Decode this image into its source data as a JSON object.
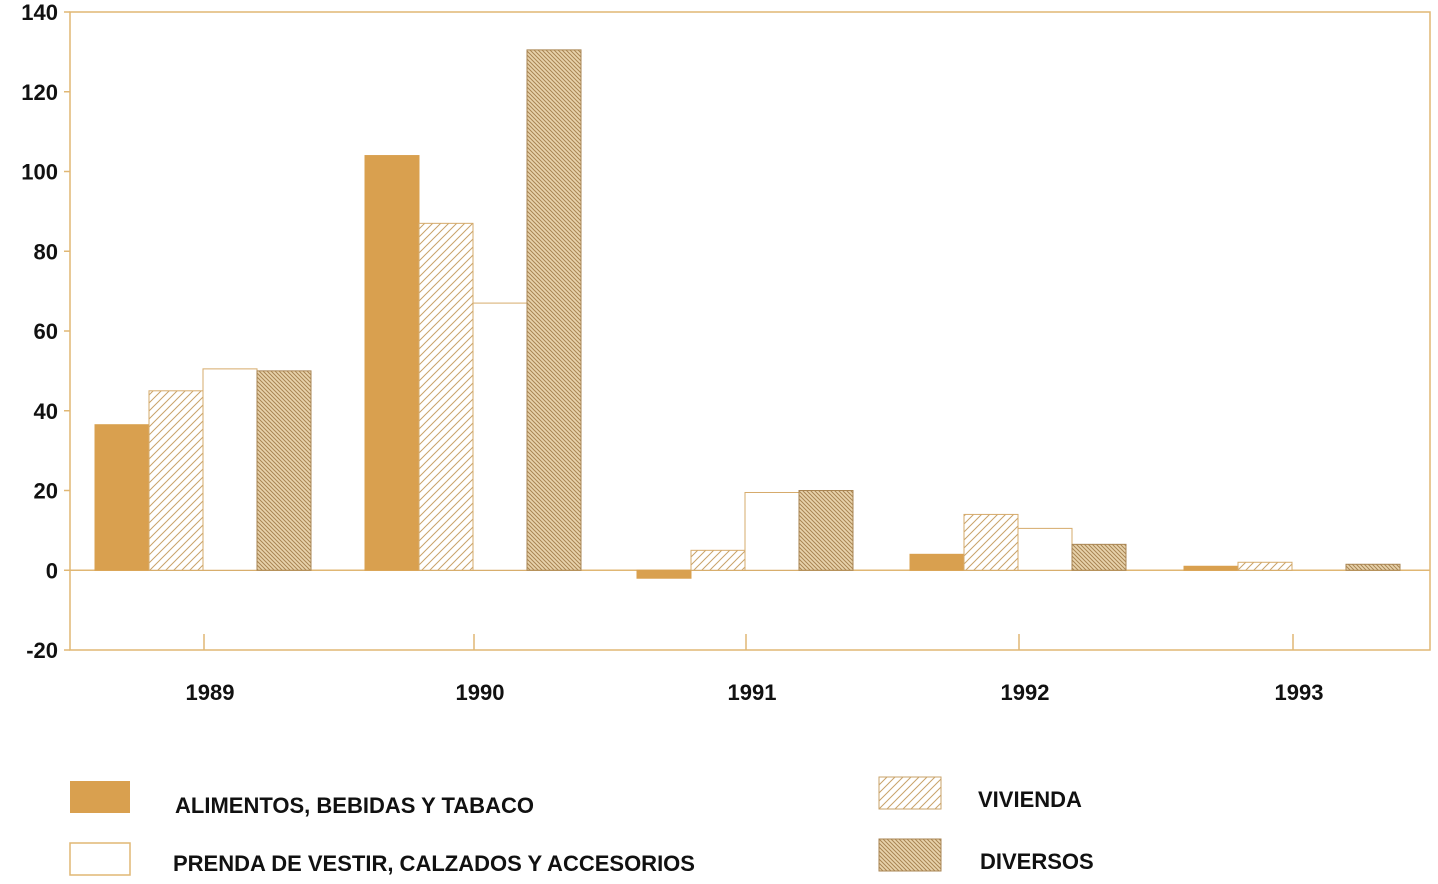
{
  "chart_data": {
    "type": "bar",
    "title": "",
    "xlabel": "",
    "ylabel": "",
    "ylim": [
      -20,
      140
    ],
    "yticks": [
      140,
      120,
      100,
      80,
      60,
      40,
      20,
      0,
      -20
    ],
    "categories": [
      "1989",
      "1990",
      "1991",
      "1992",
      "1993"
    ],
    "grid": false,
    "legend_position": "bottom",
    "series": [
      {
        "name": "ALIMENTOS, BEBIDAS Y TABACO",
        "pattern": "solid",
        "values": [
          36.5,
          104,
          -2,
          4,
          1
        ]
      },
      {
        "name": "VIVIENDA",
        "pattern": "hatch-light",
        "values": [
          45,
          87,
          5,
          14,
          2
        ]
      },
      {
        "name": "PRENDA DE VESTIR, CALZADOS Y ACCESORIOS",
        "pattern": "empty",
        "values": [
          50.5,
          67,
          19.5,
          10.5,
          0
        ]
      },
      {
        "name": "DIVERSOS",
        "pattern": "hatch-dense",
        "values": [
          50,
          130.5,
          20,
          6.5,
          1.5
        ]
      }
    ]
  },
  "colors": {
    "accent": "#d9a04f",
    "axis": "#e0b774",
    "hatch": "#c9a36a",
    "text": "#111111"
  }
}
